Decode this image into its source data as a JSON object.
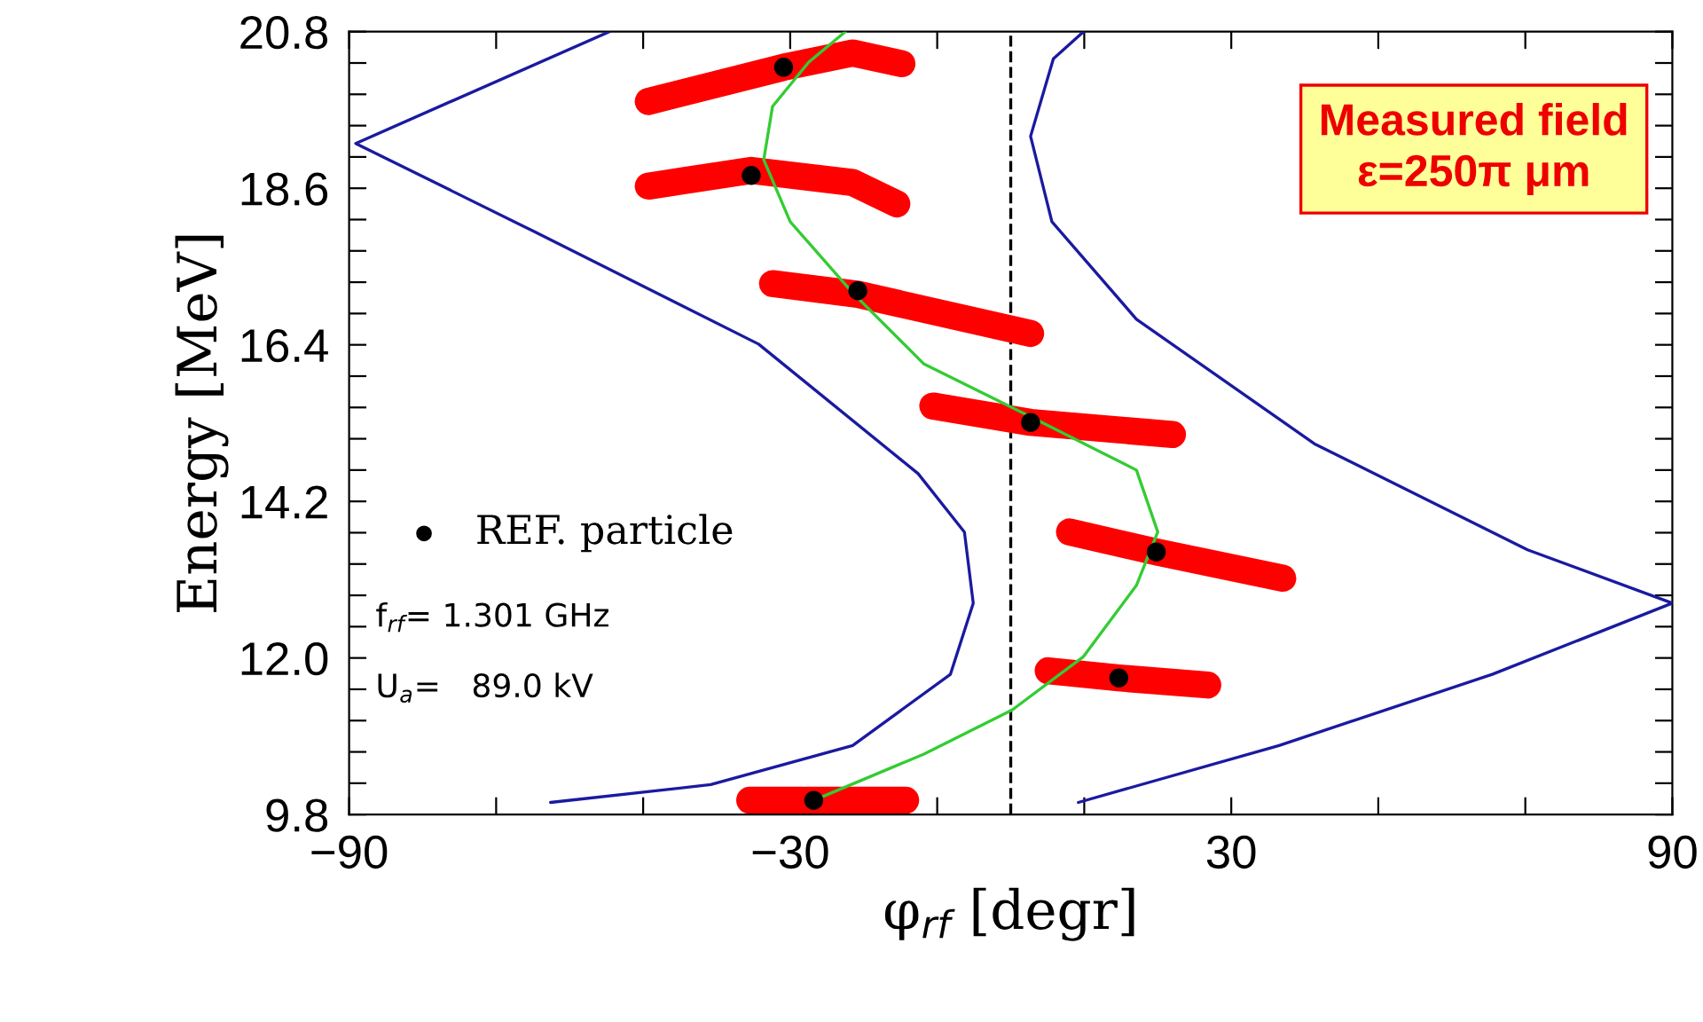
{
  "chart_data": {
    "type": "line",
    "xlabel": "φ$_{rf}$ [degr]",
    "ylabel": "Energy [MeV]",
    "xlim": [
      -90,
      90
    ],
    "ylim": [
      9.8,
      20.8
    ],
    "xticks": [
      -90,
      {
        "value": -70,
        "label": null
      },
      {
        "value": -50,
        "label": null
      },
      -30,
      {
        "value": -10,
        "label": null
      },
      {
        "value": 10,
        "label": null
      },
      30,
      {
        "value": 50,
        "label": null
      },
      {
        "value": 70,
        "label": null
      },
      90
    ],
    "yticks": [
      {
        "value": 9.8,
        "label": "9.8"
      },
      {
        "value": 10.24,
        "label": null
      },
      {
        "value": 10.68,
        "label": null
      },
      {
        "value": 11.12,
        "label": null
      },
      {
        "value": 11.56,
        "label": null
      },
      {
        "value": 12.0,
        "label": "12.0"
      },
      {
        "value": 12.44,
        "label": null
      },
      {
        "value": 12.88,
        "label": null
      },
      {
        "value": 13.32,
        "label": null
      },
      {
        "value": 13.76,
        "label": null
      },
      {
        "value": 14.2,
        "label": "14.2"
      },
      {
        "value": 14.64,
        "label": null
      },
      {
        "value": 15.08,
        "label": null
      },
      {
        "value": 15.52,
        "label": null
      },
      {
        "value": 15.96,
        "label": null
      },
      {
        "value": 16.4,
        "label": "16.4"
      },
      {
        "value": 16.84,
        "label": null
      },
      {
        "value": 17.28,
        "label": null
      },
      {
        "value": 17.72,
        "label": null
      },
      {
        "value": 18.16,
        "label": null
      },
      {
        "value": 18.6,
        "label": "18.6"
      },
      {
        "value": 19.04,
        "label": null
      },
      {
        "value": 19.48,
        "label": null
      },
      {
        "value": 19.92,
        "label": null
      },
      {
        "value": 20.36,
        "label": null
      },
      {
        "value": 20.8,
        "label": "20.8"
      }
    ],
    "grid": false,
    "legend": "bottom left",
    "ref_lines": [
      {
        "axis": "x",
        "value": 0,
        "color": "#000000",
        "line_style": "dashed"
      }
    ],
    "annotations": [
      "f$_{rf}$= 1.301 GHz",
      "U$_{a}$=   89.0 kV",
      "Measured field\nε=250π μm"
    ],
    "series": [
      {
        "color": "#ff0000",
        "x": [
          -49.3,
          -30.9,
          -21.5,
          -14.8
        ],
        "values": [
          19.82,
          20.3,
          20.5,
          20.35
        ]
      },
      {
        "color": "#ff0000",
        "x": [
          -49.3,
          -35.3,
          -21.5,
          -15.5
        ],
        "values": [
          18.63,
          18.85,
          18.68,
          18.38
        ]
      },
      {
        "color": "#ff0000",
        "x": [
          -32.4,
          -20.8,
          2.7
        ],
        "values": [
          17.26,
          17.11,
          16.56
        ]
      },
      {
        "color": "#ff0000",
        "x": [
          -10.6,
          2.7,
          22.0
        ],
        "values": [
          15.54,
          15.31,
          15.14
        ]
      },
      {
        "color": "#ff0000",
        "x": [
          8.0,
          19.8,
          37.0
        ],
        "values": [
          13.77,
          13.49,
          13.12
        ]
      },
      {
        "color": "#ff0000",
        "x": [
          5.1,
          14.7,
          26.8
        ],
        "values": [
          11.82,
          11.72,
          11.62
        ]
      },
      {
        "color": "#ff0000",
        "x": [
          -35.5,
          -26.8,
          -14.3
        ],
        "values": [
          10.0,
          10.0,
          10.0
        ]
      },
      {
        "color": "#1a1aa0",
        "x": [
          -54.6,
          -89.1,
          -65,
          -34.3,
          -12.6,
          -6.3,
          -5.1,
          -8.2,
          -21.5,
          -40.8,
          -62.6
        ],
        "values": [
          20.8,
          19.23,
          18.0,
          16.41,
          14.59,
          13.77,
          12.77,
          11.77,
          10.77,
          10.22,
          9.97
        ]
      },
      {
        "color": "#1a1aa0",
        "x": [
          9.9,
          5.8,
          2.7,
          5.6,
          17.1,
          41.3,
          70.3,
          90,
          65.5,
          36.5,
          9.2
        ],
        "values": [
          20.8,
          20.42,
          19.33,
          18.13,
          16.76,
          15.01,
          13.52,
          12.77,
          11.77,
          10.77,
          9.97
        ]
      },
      {
        "color": "#33cc33",
        "x": [
          -26.8,
          -11.8,
          0.2,
          9.9,
          17.1,
          20.0,
          17.1,
          2.7,
          -11.8,
          -21.5,
          -30.0,
          -33.6,
          -32.4,
          -27.5,
          -22.5
        ],
        "values": [
          10.0,
          10.65,
          11.27,
          12.02,
          13.02,
          13.77,
          14.64,
          15.39,
          16.13,
          17.13,
          18.13,
          19.0,
          19.75,
          20.37,
          20.8
        ]
      },
      {
        "type": "scatter",
        "name": "REF. particle",
        "color": "#000000",
        "marker": "circle",
        "x": [
          -30.9,
          -35.3,
          -20.8,
          2.7,
          19.8,
          14.7,
          -26.8
        ],
        "values": [
          20.3,
          18.78,
          17.16,
          15.31,
          13.49,
          11.72,
          10.0
        ]
      }
    ]
  }
}
